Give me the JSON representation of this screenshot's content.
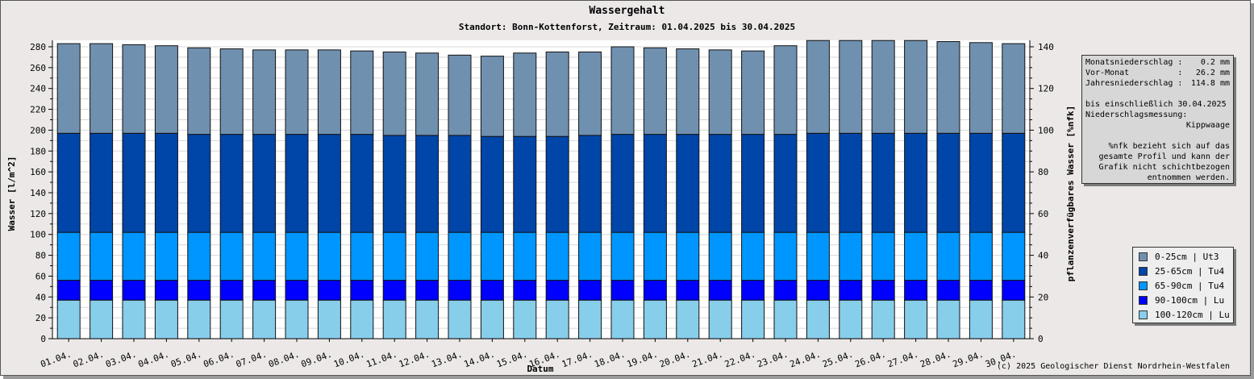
{
  "title": "Wassergehalt",
  "subtitle": "Standort: Bonn-Kottenforst, Zeitraum: 01.04.2025 bis 30.04.2025",
  "copyright": "(c) 2025 Geologischer Dienst Nordrhein-Westfalen",
  "info": {
    "monats_label": "Monatsniederschlag :",
    "monats_value": "0.2 mm",
    "vormonat_label": "Vor-Monat          :",
    "vormonat_value": "26.2 mm",
    "jahres_label": "Jahresniederschlag :",
    "jahres_value": "114.8 mm",
    "bis_line": "bis einschließlich 30.04.2025",
    "messung_label": "Niederschlagsmessung:",
    "messung_value": "Kippwaage",
    "note": "%nfk bezieht sich auf das gesamte Profil und kann der Grafik nicht schichtbezogen entnommen werden."
  },
  "chart_data": {
    "type": "bar",
    "stacked": true,
    "title": "Wassergehalt",
    "subtitle": "Standort: Bonn-Kottenforst, Zeitraum: 01.04.2025 bis 30.04.2025",
    "xlabel": "Datum",
    "ylabel": "Wasser [l/m^2]",
    "y2label": "pflanzenverfügbares Wasser [%nfk]",
    "ylim": [
      0,
      280
    ],
    "yticks": [
      0,
      20,
      40,
      60,
      80,
      100,
      120,
      140,
      160,
      180,
      200,
      220,
      240,
      260,
      280
    ],
    "y2lim": [
      0,
      140
    ],
    "y2ticks": [
      0,
      20,
      40,
      60,
      80,
      100,
      120,
      140
    ],
    "grid": true,
    "legend_position": "right",
    "categories": [
      "01.04.",
      "02.04.",
      "03.04.",
      "04.04.",
      "05.04.",
      "06.04.",
      "07.04.",
      "08.04.",
      "09.04.",
      "10.04.",
      "11.04.",
      "12.04.",
      "13.04.",
      "14.04.",
      "15.04.",
      "16.04.",
      "17.04.",
      "18.04.",
      "19.04.",
      "20.04.",
      "21.04.",
      "22.04.",
      "23.04.",
      "24.04.",
      "25.04.",
      "26.04.",
      "27.04.",
      "28.04.",
      "29.04.",
      "30.04."
    ],
    "series": [
      {
        "name": "100-120cm | Lu",
        "color": "#87ceeb",
        "values": [
          37,
          37,
          37,
          37,
          37,
          37,
          37,
          37,
          37,
          37,
          37,
          37,
          37,
          37,
          37,
          37,
          37,
          37,
          37,
          37,
          37,
          37,
          37,
          37,
          37,
          37,
          37,
          37,
          37,
          37
        ]
      },
      {
        "name": "90-100cm | Lu",
        "color": "#0000ff",
        "values": [
          19,
          19,
          19,
          19,
          19,
          19,
          19,
          19,
          19,
          19,
          19,
          19,
          19,
          19,
          19,
          19,
          19,
          19,
          19,
          19,
          19,
          19,
          19,
          19,
          19,
          19,
          19,
          19,
          19,
          19
        ]
      },
      {
        "name": "65-90cm | Tu4",
        "color": "#0096ff",
        "values": [
          46,
          46,
          46,
          46,
          46,
          46,
          46,
          46,
          46,
          46,
          46,
          46,
          46,
          46,
          46,
          46,
          46,
          46,
          46,
          46,
          46,
          46,
          46,
          46,
          46,
          46,
          46,
          46,
          46,
          46
        ]
      },
      {
        "name": "25-65cm | Tu4",
        "color": "#0045a8",
        "values": [
          95,
          95,
          95,
          95,
          94,
          94,
          94,
          94,
          94,
          94,
          93,
          93,
          93,
          92,
          92,
          92,
          93,
          94,
          94,
          94,
          94,
          94,
          94,
          95,
          95,
          95,
          95,
          95,
          95,
          95
        ]
      },
      {
        "name": "0-25cm | Ut3",
        "color": "#7090b0",
        "values": [
          86,
          86,
          85,
          84,
          83,
          82,
          81,
          81,
          81,
          80,
          80,
          79,
          77,
          77,
          80,
          81,
          80,
          84,
          83,
          82,
          81,
          80,
          85,
          89,
          89,
          89,
          89,
          88,
          87,
          86
        ]
      }
    ]
  }
}
